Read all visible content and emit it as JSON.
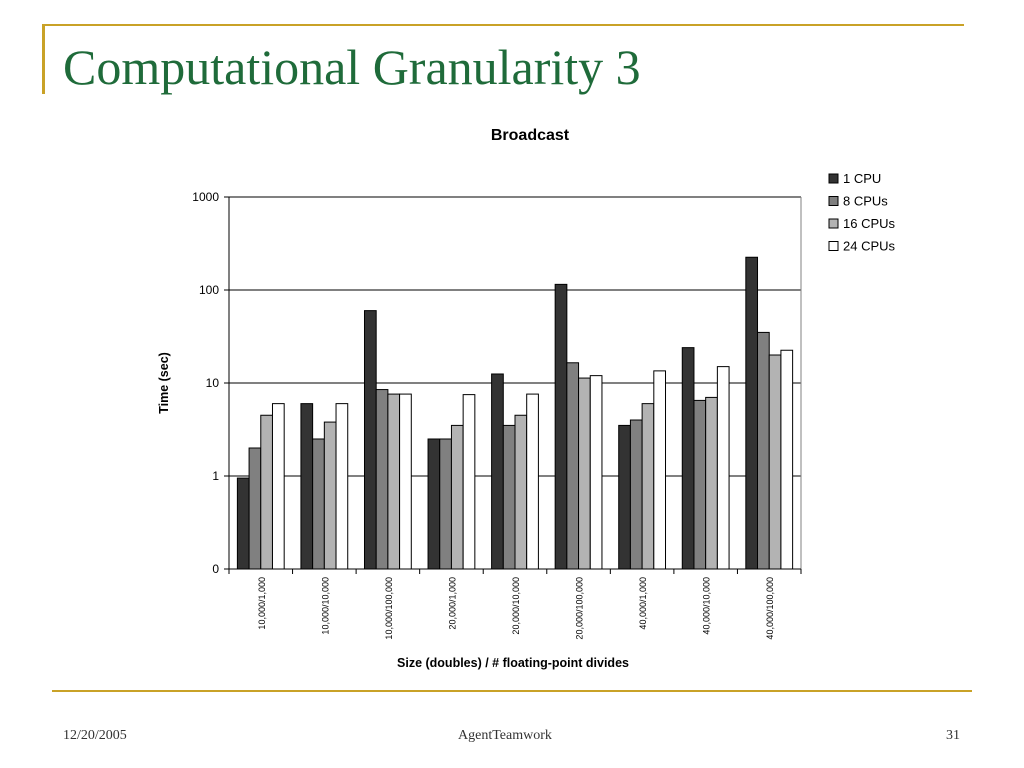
{
  "slide": {
    "title": "Computational Granularity 3",
    "footer_date": "12/20/2005",
    "footer_center": "AgentTeamwork",
    "footer_page": "31"
  },
  "colors": {
    "accent_rule": "#c9a227",
    "title_green": "#1f6b3a"
  },
  "chart_data": {
    "type": "bar",
    "title": "Broadcast",
    "xlabel": "Size (doubles) / # floating-point divides",
    "ylabel": "Time (sec)",
    "yscale": "log",
    "ylim": [
      0.1,
      1000
    ],
    "yticks": [
      {
        "value": 1000,
        "label": "1000"
      },
      {
        "value": 100,
        "label": "100"
      },
      {
        "value": 10,
        "label": "10"
      },
      {
        "value": 1,
        "label": "1"
      },
      {
        "value": 0.1,
        "label": "0"
      }
    ],
    "grid": true,
    "legend_position": "top-right",
    "categories": [
      "10,000/1,000",
      "10,000/10,000",
      "10,000/100,000",
      "20,000/1,000",
      "20,000/10,000",
      "20,000/100,000",
      "40,000/1,000",
      "40,000/10,000",
      "40,000/100,000"
    ],
    "series": [
      {
        "name": "1 CPU",
        "color": "#333333",
        "values": [
          0.95,
          6,
          60,
          2.5,
          12.5,
          115,
          3.5,
          24,
          225
        ]
      },
      {
        "name": "8 CPUs",
        "color": "#808080",
        "values": [
          2,
          2.5,
          8.5,
          2.5,
          3.5,
          16.5,
          4,
          6.5,
          35
        ]
      },
      {
        "name": "16 CPUs",
        "color": "#b3b3b3",
        "values": [
          4.5,
          3.8,
          7.6,
          3.5,
          4.5,
          11.3,
          6,
          7,
          20
        ]
      },
      {
        "name": "24 CPUs",
        "color": "#ffffff",
        "values": [
          6,
          6,
          7.6,
          7.5,
          7.6,
          12,
          13.5,
          15,
          22.5
        ]
      }
    ]
  }
}
